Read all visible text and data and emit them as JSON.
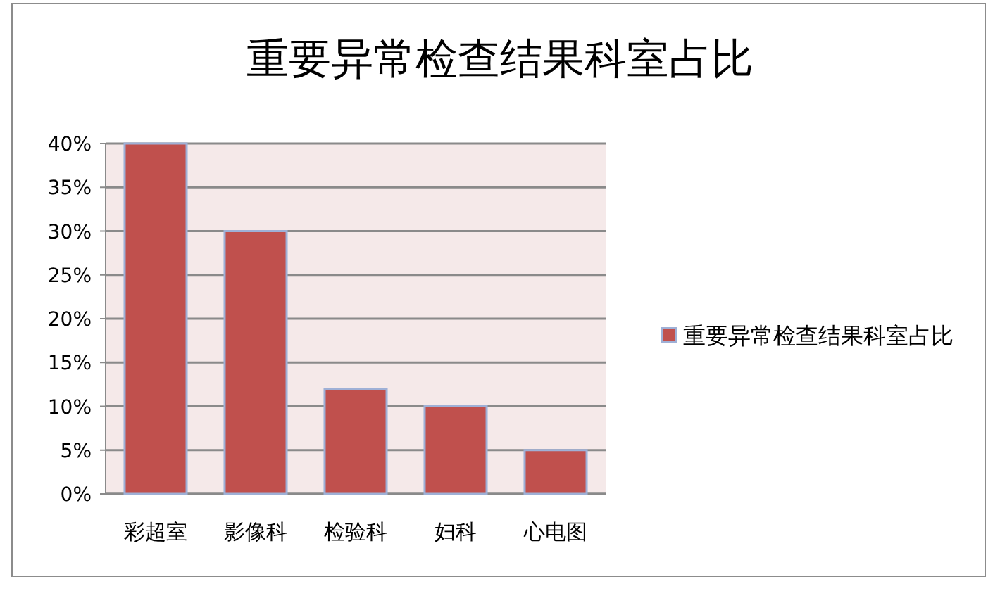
{
  "chart_data": {
    "type": "bar",
    "title": "重要异常检查结果科室占比",
    "categories": [
      "彩超室",
      "影像科",
      "检验科",
      "妇科",
      "心电图"
    ],
    "series": [
      {
        "name": "重要异常检查结果科室占比",
        "color": "#c0504d",
        "values": [
          40,
          30,
          12,
          10,
          5
        ]
      }
    ],
    "ylim": [
      0,
      40
    ],
    "yticks": [
      {
        "value": 0,
        "label": "0%"
      },
      {
        "value": 5,
        "label": "5%"
      },
      {
        "value": 10,
        "label": "10%"
      },
      {
        "value": 15,
        "label": "15%"
      },
      {
        "value": 20,
        "label": "20%"
      },
      {
        "value": 25,
        "label": "25%"
      },
      {
        "value": 30,
        "label": "30%"
      },
      {
        "value": 35,
        "label": "35%"
      },
      {
        "value": 40,
        "label": "40%"
      }
    ],
    "grid": "y",
    "legend": "right"
  }
}
